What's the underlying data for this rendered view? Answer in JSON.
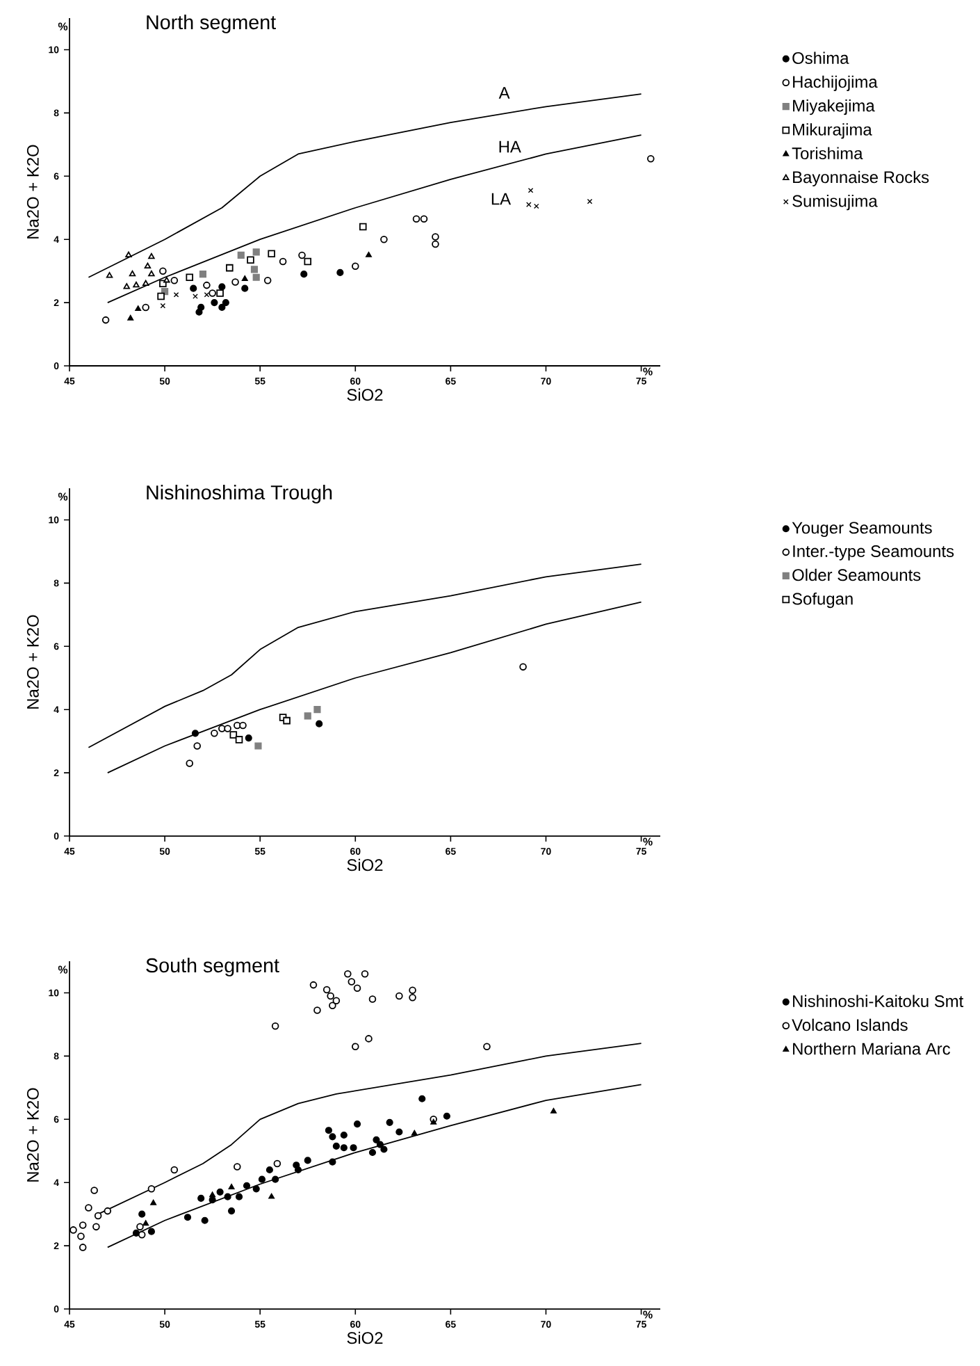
{
  "chart_data": [
    {
      "type": "scatter",
      "title": "North segment",
      "xlabel": "SiO2",
      "ylabel": "Na2O + K2O",
      "xlim": [
        45,
        76
      ],
      "ylim": [
        0,
        11
      ],
      "xticks": [
        45,
        50,
        55,
        60,
        65,
        70,
        75
      ],
      "yticks": [
        0,
        2,
        4,
        6,
        8,
        10
      ],
      "legend": "right",
      "annotations": [
        "%",
        "%",
        "A",
        "HA",
        "LA"
      ],
      "series": [
        {
          "type": "line",
          "color": "#000000",
          "marker": "none",
          "x": [
            46,
            50,
            53,
            55,
            57,
            60,
            65,
            70,
            75
          ],
          "values": [
            2.8,
            4.0,
            5.0,
            6.0,
            6.7,
            7.1,
            7.7,
            8.2,
            8.6
          ]
        },
        {
          "type": "line",
          "color": "#000000",
          "marker": "none",
          "x": [
            47,
            50,
            55,
            60,
            65,
            70,
            75
          ],
          "values": [
            2.0,
            2.8,
            4.0,
            5.0,
            5.9,
            6.7,
            7.3
          ]
        },
        {
          "name": "Oshima",
          "color": "#000000",
          "marker": "circle",
          "x": [
            51.8,
            51.9,
            51.5,
            52.6,
            53.0,
            53.2,
            54.2,
            53.0,
            57.3,
            59.2
          ],
          "values": [
            1.7,
            1.85,
            2.45,
            2.0,
            1.85,
            2.0,
            2.45,
            2.5,
            2.9,
            2.95
          ]
        },
        {
          "name": "Hachijojima",
          "color": "#ffffff",
          "marker": "circle",
          "x": [
            46.9,
            49.0,
            49.9,
            50.5,
            52.2,
            52.5,
            53.7,
            55.4,
            56.2,
            57.2,
            60.0,
            61.5,
            63.2,
            63.6,
            64.2,
            64.2,
            75.5
          ],
          "values": [
            1.45,
            1.85,
            3.0,
            2.7,
            2.55,
            2.3,
            2.65,
            2.7,
            3.3,
            3.5,
            3.15,
            4.0,
            4.65,
            4.65,
            4.08,
            3.85,
            6.55
          ]
        },
        {
          "name": "Miyakejima",
          "color": "#808080",
          "marker": "square",
          "x": [
            50.0,
            52.0,
            54.0,
            54.8,
            54.7,
            54.8
          ],
          "values": [
            2.35,
            2.9,
            3.5,
            3.6,
            3.05,
            2.8
          ]
        },
        {
          "name": "Mikurajima",
          "color": "#ffffff",
          "marker": "square",
          "x": [
            49.8,
            49.9,
            51.3,
            52.9,
            53.4,
            54.5,
            55.6,
            57.5,
            60.4
          ],
          "values": [
            2.2,
            2.6,
            2.8,
            2.3,
            3.1,
            3.35,
            3.55,
            3.3,
            4.4
          ]
        },
        {
          "name": "Torishima",
          "color": "#000000",
          "marker": "triangle",
          "x": [
            48.2,
            48.6,
            54.2,
            60.7
          ],
          "values": [
            1.5,
            1.8,
            2.75,
            3.5
          ]
        },
        {
          "name": "Bayonnaise Rocks",
          "color": "#ffffff",
          "marker": "triangle",
          "x": [
            47.1,
            48.0,
            48.1,
            48.3,
            48.5,
            49.0,
            49.1,
            49.3,
            49.3,
            50.1
          ],
          "values": [
            2.85,
            2.5,
            3.5,
            2.9,
            2.55,
            2.6,
            3.15,
            2.9,
            3.45,
            2.7
          ]
        },
        {
          "name": "Sumisujima",
          "color": "#000000",
          "marker": "cross",
          "x": [
            49.9,
            50.6,
            51.6,
            52.2,
            69.2,
            69.1,
            69.5,
            72.3
          ],
          "values": [
            1.9,
            2.25,
            2.2,
            2.25,
            5.55,
            5.1,
            5.05,
            5.2
          ]
        }
      ]
    },
    {
      "type": "scatter",
      "title": "Nishinoshima Trough",
      "xlabel": "SiO2",
      "ylabel": "Na2O + K2O",
      "xlim": [
        45,
        76
      ],
      "ylim": [
        0,
        11
      ],
      "xticks": [
        45,
        50,
        55,
        60,
        65,
        70,
        75
      ],
      "yticks": [
        0,
        2,
        4,
        6,
        8,
        10
      ],
      "legend": "right",
      "annotations": [
        "%",
        "%"
      ],
      "series": [
        {
          "type": "line",
          "color": "#000000",
          "marker": "none",
          "x": [
            46,
            50,
            52,
            53.5,
            55,
            57,
            60,
            65,
            70,
            75
          ],
          "values": [
            2.8,
            4.1,
            4.6,
            5.1,
            5.9,
            6.6,
            7.1,
            7.6,
            8.2,
            8.6
          ]
        },
        {
          "type": "line",
          "color": "#000000",
          "marker": "none",
          "x": [
            47,
            50,
            55,
            60,
            65,
            70,
            75
          ],
          "values": [
            2.0,
            2.85,
            4.0,
            5.0,
            5.8,
            6.7,
            7.4
          ]
        },
        {
          "name": "Youger Seamounts",
          "color": "#000000",
          "marker": "circle",
          "x": [
            51.6,
            54.4,
            58.1
          ],
          "values": [
            3.25,
            3.1,
            3.55
          ]
        },
        {
          "name": "Inter.-type Seamounts",
          "color": "#ffffff",
          "marker": "circle",
          "x": [
            51.3,
            51.7,
            52.6,
            53.0,
            53.3,
            53.8,
            54.1,
            68.8
          ],
          "values": [
            2.3,
            2.85,
            3.25,
            3.4,
            3.4,
            3.5,
            3.5,
            5.35
          ]
        },
        {
          "name": "Older Seamounts",
          "color": "#808080",
          "marker": "square",
          "x": [
            54.9,
            57.5,
            58.0
          ],
          "values": [
            2.85,
            3.8,
            4.0
          ]
        },
        {
          "name": "Sofugan",
          "color": "#ffffff",
          "marker": "square",
          "x": [
            53.6,
            53.9,
            56.2,
            56.4
          ],
          "values": [
            3.2,
            3.05,
            3.75,
            3.65
          ]
        }
      ]
    },
    {
      "type": "scatter",
      "title": "South segment",
      "xlabel": "SiO2",
      "ylabel": "Na2O + K2O",
      "xlim": [
        45,
        76
      ],
      "ylim": [
        0,
        11
      ],
      "xticks": [
        45,
        50,
        55,
        60,
        65,
        70,
        75
      ],
      "yticks": [
        0,
        2,
        4,
        6,
        8,
        10
      ],
      "legend": "right",
      "annotations": [
        "%",
        "%"
      ],
      "series": [
        {
          "type": "line",
          "color": "#000000",
          "marker": "none",
          "x": [
            46.5,
            50,
            52,
            53.5,
            55,
            57,
            59,
            65,
            70,
            75
          ],
          "values": [
            3.0,
            4.0,
            4.6,
            5.2,
            6.0,
            6.5,
            6.8,
            7.4,
            8.0,
            8.4
          ]
        },
        {
          "type": "line",
          "color": "#000000",
          "marker": "none",
          "x": [
            47,
            50,
            55,
            60,
            65,
            70,
            75
          ],
          "values": [
            1.95,
            2.8,
            3.95,
            4.95,
            5.8,
            6.6,
            7.1
          ]
        },
        {
          "name": "Nishinoshi-Kaitoku Smt",
          "color": "#000000",
          "marker": "circle",
          "x": [
            48.8,
            48.5,
            49.3,
            51.2,
            51.9,
            52.1,
            52.5,
            52.9,
            53.3,
            53.5,
            53.9,
            54.3,
            54.8,
            55.1,
            55.5,
            55.8,
            56.9,
            57.0,
            57.5,
            58.6,
            58.8,
            59.0,
            59.4,
            59.4,
            59.9,
            60.1,
            58.8,
            60.9,
            61.1,
            61.3,
            61.5,
            61.8,
            62.3,
            63.5,
            64.8
          ],
          "values": [
            3.0,
            2.4,
            2.45,
            2.9,
            3.5,
            2.8,
            3.45,
            3.7,
            3.55,
            3.1,
            3.55,
            3.9,
            3.8,
            4.1,
            4.4,
            4.1,
            4.55,
            4.4,
            4.7,
            5.65,
            5.45,
            5.15,
            5.5,
            5.1,
            5.1,
            5.85,
            4.65,
            4.95,
            5.35,
            5.2,
            5.05,
            5.9,
            5.6,
            6.65,
            6.1
          ]
        },
        {
          "name": "Volcano Islands",
          "color": "#ffffff",
          "marker": "circle",
          "x": [
            45.2,
            45.6,
            45.7,
            45.7,
            46.0,
            46.3,
            46.4,
            46.5,
            47.0,
            48.7,
            48.8,
            49.3,
            50.5,
            53.8,
            55.9,
            64.1,
            55.8,
            57.8,
            58.0,
            58.5,
            58.7,
            58.8,
            59.0,
            59.6,
            59.8,
            60.1,
            60.5,
            60.9,
            62.3,
            63.0,
            63.0,
            60.0,
            60.7,
            66.9
          ],
          "values": [
            2.5,
            2.3,
            2.65,
            1.95,
            3.2,
            3.75,
            2.6,
            2.95,
            3.1,
            2.6,
            2.35,
            3.8,
            4.4,
            4.5,
            4.6,
            6.0,
            8.95,
            10.25,
            9.45,
            10.1,
            9.9,
            9.6,
            9.75,
            10.6,
            10.35,
            10.15,
            10.6,
            9.8,
            9.9,
            10.08,
            9.85,
            8.3,
            8.55,
            8.3
          ]
        },
        {
          "name": "Northern Mariana Arc",
          "color": "#000000",
          "marker": "triangle",
          "x": [
            49.0,
            49.4,
            52.5,
            53.5,
            55.6,
            63.1,
            64.1,
            70.4
          ],
          "values": [
            2.7,
            3.35,
            3.6,
            3.85,
            3.55,
            5.55,
            5.9,
            6.25
          ]
        }
      ]
    }
  ]
}
